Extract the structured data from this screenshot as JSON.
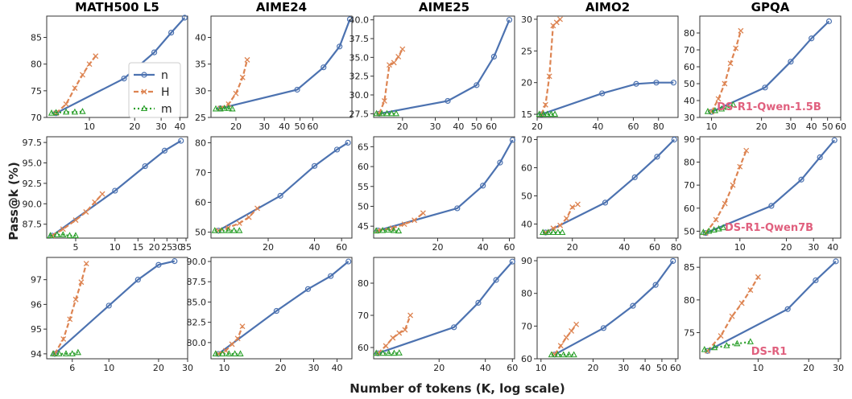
{
  "figure": {
    "ylabel": "Pass@k (%)",
    "xlabel": "Number of tokens (K, log scale)",
    "columns": [
      "MATH500 L5",
      "AIME24",
      "AIME25",
      "AIMO2",
      "GPQA"
    ],
    "row_labels": [
      "DS-R1-Qwen-1.5B",
      "DS-R1-Qwen7B",
      "DS-R1"
    ],
    "legend": [
      "n",
      "H",
      "m"
    ],
    "colors": {
      "n": "#4c72b0",
      "H": "#dd8452",
      "m": "#2ca02c",
      "row_label": "#e0607e"
    }
  },
  "chart_data": [
    {
      "type": "line",
      "row": 0,
      "col": 0,
      "xlog": true,
      "xlim": [
        5.2,
        45
      ],
      "ylim": [
        70,
        89
      ],
      "xticks": [
        10,
        20,
        30,
        40
      ],
      "yticks": [
        70,
        75,
        80,
        85
      ],
      "series": [
        {
          "name": "n",
          "x": [
            6,
            17,
            27,
            35,
            43
          ],
          "y": [
            70.8,
            77.3,
            82.2,
            85.9,
            88.7
          ]
        },
        {
          "name": "H",
          "x": [
            6,
            7,
            8,
            9,
            10,
            11
          ],
          "y": [
            70.8,
            72.5,
            75.5,
            78,
            80,
            81.5
          ]
        },
        {
          "name": "m",
          "x": [
            5.6,
            6,
            7,
            8,
            9
          ],
          "y": [
            70.8,
            70.9,
            71,
            71,
            71.1
          ]
        }
      ]
    },
    {
      "type": "line",
      "row": 0,
      "col": 1,
      "xlog": true,
      "xlim": [
        14,
        105
      ],
      "ylim": [
        25,
        44
      ],
      "xticks": [
        20,
        30,
        40,
        50,
        60
      ],
      "yticks": [
        25,
        30,
        35,
        40
      ],
      "series": [
        {
          "name": "n",
          "x": [
            16,
            48,
            70,
            88,
            102
          ],
          "y": [
            26.7,
            30.2,
            34.4,
            38.3,
            43.4
          ]
        },
        {
          "name": "H",
          "x": [
            16,
            18,
            20,
            22,
            23.5
          ],
          "y": [
            26.7,
            27.5,
            29.5,
            32.5,
            35.8
          ]
        },
        {
          "name": "m",
          "x": [
            15,
            16,
            17,
            18,
            19
          ],
          "y": [
            26.6,
            26.6,
            26.7,
            26.7,
            26.6
          ]
        }
      ]
    },
    {
      "type": "line",
      "row": 0,
      "col": 2,
      "xlog": true,
      "xlim": [
        14,
        80
      ],
      "ylim": [
        27,
        40.5
      ],
      "xticks": [
        20,
        30,
        40,
        50,
        60
      ],
      "yticks": [
        27.5,
        30.0,
        32.5,
        35.0,
        37.5,
        40.0
      ],
      "series": [
        {
          "name": "n",
          "x": [
            15,
            35,
            50,
            62,
            75
          ],
          "y": [
            27.5,
            29.2,
            31.3,
            35.1,
            40.0
          ]
        },
        {
          "name": "H",
          "x": [
            15,
            16,
            17,
            18,
            19,
            20
          ],
          "y": [
            27.5,
            29.2,
            34,
            34.3,
            35.1,
            36.1
          ]
        },
        {
          "name": "m",
          "x": [
            14.5,
            15.5,
            16.5,
            17.5,
            18.5
          ],
          "y": [
            27.5,
            27.5,
            27.5,
            27.5,
            27.5
          ]
        }
      ]
    },
    {
      "type": "line",
      "row": 0,
      "col": 3,
      "xlog": true,
      "xlim": [
        20,
        100
      ],
      "ylim": [
        14.5,
        30.5
      ],
      "xticks": [
        20,
        40,
        60,
        80
      ],
      "yticks": [
        15,
        20,
        25,
        30
      ],
      "series": [
        {
          "name": "n",
          "x": [
            21,
            42,
            62,
            78,
            95
          ],
          "y": [
            15,
            18.3,
            19.8,
            20,
            20
          ]
        },
        {
          "name": "H",
          "x": [
            21,
            22,
            23,
            24,
            25,
            26
          ],
          "y": [
            15,
            16.5,
            21,
            29,
            29.5,
            30
          ]
        },
        {
          "name": "m",
          "x": [
            20.5,
            21.5,
            22.5,
            23.5,
            24.5
          ],
          "y": [
            15,
            15,
            15,
            15,
            15
          ]
        }
      ]
    },
    {
      "type": "line",
      "row": 0,
      "col": 4,
      "xlog": true,
      "xlim": [
        8.5,
        60
      ],
      "ylim": [
        30,
        90
      ],
      "xticks": [
        10,
        20,
        30,
        40,
        50,
        60
      ],
      "yticks": [
        30,
        40,
        50,
        60,
        70,
        80
      ],
      "series": [
        {
          "name": "n",
          "x": [
            10,
            21,
            30,
            40,
            51
          ],
          "y": [
            33.3,
            47.7,
            63,
            76.8,
            86.9
          ]
        },
        {
          "name": "H",
          "x": [
            10,
            11,
            12,
            13,
            14,
            15
          ],
          "y": [
            33.3,
            41,
            50,
            62,
            71,
            81.3
          ]
        },
        {
          "name": "m",
          "x": [
            9.5,
            10.5,
            11.5,
            12.5,
            13.5
          ],
          "y": [
            33.5,
            34,
            35,
            36,
            37.5
          ]
        }
      ]
    },
    {
      "type": "line",
      "row": 1,
      "col": 0,
      "xlog": true,
      "xlim": [
        3,
        36
      ],
      "ylim": [
        85.8,
        98.2
      ],
      "xticks": [
        5,
        10,
        15,
        20,
        25,
        30,
        35
      ],
      "yticks": [
        87.5,
        90.0,
        92.5,
        95.0,
        97.5
      ],
      "series": [
        {
          "name": "n",
          "x": [
            3.3,
            10,
            17,
            24,
            32
          ],
          "y": [
            86.1,
            91.6,
            94.6,
            96.5,
            97.7
          ]
        },
        {
          "name": "H",
          "x": [
            3.3,
            4,
            5,
            6,
            7,
            8
          ],
          "y": [
            86.1,
            86.9,
            88,
            89,
            90.2,
            91.2
          ]
        },
        {
          "name": "m",
          "x": [
            3.2,
            3.6,
            4,
            4.5,
            5
          ],
          "y": [
            86.1,
            86.2,
            86.2,
            86.1,
            86.1
          ]
        }
      ]
    },
    {
      "type": "line",
      "row": 1,
      "col": 1,
      "xlog": true,
      "xlim": [
        8.5,
        70
      ],
      "ylim": [
        48,
        82
      ],
      "xticks": [
        20,
        40,
        60
      ],
      "yticks": [
        50,
        60,
        70,
        80
      ],
      "series": [
        {
          "name": "n",
          "x": [
            9.5,
            24,
            40,
            56,
            66
          ],
          "y": [
            50.5,
            62.2,
            72.2,
            77.7,
            80
          ]
        },
        {
          "name": "H",
          "x": [
            9.5,
            11,
            13,
            15,
            17
          ],
          "y": [
            50.5,
            51.5,
            53,
            55,
            58
          ]
        },
        {
          "name": "m",
          "x": [
            9,
            10,
            11,
            12,
            13
          ],
          "y": [
            50.5,
            50.5,
            50.5,
            50.5,
            50.5
          ]
        }
      ]
    },
    {
      "type": "line",
      "row": 1,
      "col": 2,
      "xlog": true,
      "xlim": [
        7.5,
        65
      ],
      "ylim": [
        42,
        67.5
      ],
      "xticks": [
        20,
        40,
        60
      ],
      "yticks": [
        45,
        50,
        55,
        60,
        65
      ],
      "series": [
        {
          "name": "n",
          "x": [
            8,
            27,
            40,
            52,
            63
          ],
          "y": [
            43.9,
            49.5,
            55.2,
            61,
            66.7
          ]
        },
        {
          "name": "H",
          "x": [
            8,
            10,
            12,
            14,
            16
          ],
          "y": [
            43.9,
            44.5,
            45.5,
            46.5,
            48.3
          ]
        },
        {
          "name": "m",
          "x": [
            7.8,
            8.6,
            9.4,
            10.2,
            11
          ],
          "y": [
            43.8,
            43.9,
            44,
            43.9,
            43.8
          ]
        }
      ]
    },
    {
      "type": "line",
      "row": 1,
      "col": 3,
      "xlog": true,
      "xlim": [
        12.5,
        82
      ],
      "ylim": [
        35,
        71
      ],
      "xticks": [
        20,
        40,
        60,
        80
      ],
      "yticks": [
        40,
        50,
        60,
        70
      ],
      "series": [
        {
          "name": "n",
          "x": [
            14,
            31,
            46,
            62,
            78
          ],
          "y": [
            37,
            47.6,
            56.6,
            63.9,
            70
          ]
        },
        {
          "name": "H",
          "x": [
            14,
            15.5,
            17,
            18.5,
            20,
            21.5
          ],
          "y": [
            37,
            38.5,
            39.5,
            42,
            46,
            47
          ]
        },
        {
          "name": "m",
          "x": [
            13.5,
            14.5,
            15.5,
            16.5,
            17.5
          ],
          "y": [
            37,
            37,
            37,
            37,
            37
          ]
        }
      ]
    },
    {
      "type": "line",
      "row": 1,
      "col": 4,
      "xlog": true,
      "xlim": [
        5.5,
        45
      ],
      "ylim": [
        47,
        91
      ],
      "xticks": [
        10,
        20,
        30,
        40
      ],
      "yticks": [
        50,
        60,
        70,
        80,
        90
      ],
      "series": [
        {
          "name": "n",
          "x": [
            6,
            16,
            25,
            33,
            41
          ],
          "y": [
            49.2,
            61,
            72.4,
            82.1,
            89.5
          ]
        },
        {
          "name": "H",
          "x": [
            6,
            7,
            8,
            9,
            10,
            11
          ],
          "y": [
            49.2,
            55,
            62,
            70,
            78,
            85
          ]
        },
        {
          "name": "m",
          "x": [
            5.8,
            6.3,
            6.8,
            7.3,
            7.8
          ],
          "y": [
            49.5,
            50,
            50.5,
            51,
            51.5
          ]
        }
      ]
    },
    {
      "type": "line",
      "row": 2,
      "col": 0,
      "xlog": true,
      "xlim": [
        4.2,
        30
      ],
      "ylim": [
        93.8,
        97.9
      ],
      "xticks": [
        6,
        10,
        20,
        30
      ],
      "yticks": [
        94,
        95,
        96,
        97
      ],
      "series": [
        {
          "name": "n",
          "x": [
            4.7,
            10,
            15,
            20,
            25
          ],
          "y": [
            94,
            95.95,
            97,
            97.6,
            97.75
          ]
        },
        {
          "name": "H",
          "x": [
            4.7,
            5.3,
            5.8,
            6.3,
            6.8,
            7.3
          ],
          "y": [
            94,
            94.6,
            95.4,
            96.2,
            96.9,
            97.65
          ]
        },
        {
          "name": "m",
          "x": [
            4.6,
            5,
            5.5,
            6,
            6.5
          ],
          "y": [
            94,
            94,
            94,
            94,
            94.05
          ]
        }
      ]
    },
    {
      "type": "line",
      "row": 2,
      "col": 1,
      "xlog": true,
      "xlim": [
        8.5,
        48
      ],
      "ylim": [
        78,
        90.5
      ],
      "xticks": [
        10,
        20,
        30,
        40
      ],
      "yticks": [
        80.0,
        82.5,
        85.0,
        87.5,
        90.0
      ],
      "series": [
        {
          "name": "n",
          "x": [
            9.3,
            19,
            28,
            37,
            46
          ],
          "y": [
            78.6,
            83.9,
            86.6,
            88.2,
            90
          ]
        },
        {
          "name": "H",
          "x": [
            9.3,
            10.2,
            11,
            11.8,
            12.5
          ],
          "y": [
            78.6,
            79,
            79.8,
            80.5,
            82
          ]
        },
        {
          "name": "m",
          "x": [
            9,
            9.8,
            10.6,
            11.4,
            12.2
          ],
          "y": [
            78.6,
            78.6,
            78.6,
            78.6,
            78.6
          ]
        }
      ]
    },
    {
      "type": "line",
      "row": 2,
      "col": 2,
      "xlog": true,
      "xlim": [
        7.5,
        62
      ],
      "ylim": [
        56.5,
        88
      ],
      "xticks": [
        20,
        40,
        60
      ],
      "yticks": [
        60,
        70,
        80
      ],
      "series": [
        {
          "name": "n",
          "x": [
            8,
            25,
            36,
            47,
            60
          ],
          "y": [
            58.2,
            66.3,
            73.9,
            81,
            86.7
          ]
        },
        {
          "name": "H",
          "x": [
            8,
            9,
            10,
            11,
            12,
            13
          ],
          "y": [
            58.2,
            60.5,
            63,
            64.5,
            65.5,
            70
          ]
        },
        {
          "name": "m",
          "x": [
            7.8,
            8.6,
            9.4,
            10.2,
            11
          ],
          "y": [
            58.2,
            58.2,
            58.2,
            58.2,
            58.3
          ]
        }
      ]
    },
    {
      "type": "line",
      "row": 2,
      "col": 3,
      "xlog": true,
      "xlim": [
        9.5,
        62
      ],
      "ylim": [
        60,
        91
      ],
      "xticks": [
        10,
        20,
        30,
        40,
        50,
        60
      ],
      "yticks": [
        60,
        70,
        80,
        90
      ],
      "series": [
        {
          "name": "n",
          "x": [
            12,
            23,
            34,
            46,
            58
          ],
          "y": [
            61.3,
            69.4,
            76.2,
            82.6,
            89.9
          ]
        },
        {
          "name": "H",
          "x": [
            12,
            13,
            14,
            15,
            16
          ],
          "y": [
            61.3,
            64,
            66.5,
            68.5,
            70.5
          ]
        },
        {
          "name": "m",
          "x": [
            11.5,
            12.5,
            13.5,
            14.5,
            15.5
          ],
          "y": [
            61.2,
            61.2,
            61.2,
            61.2,
            61.2
          ]
        }
      ]
    },
    {
      "type": "line",
      "row": 2,
      "col": 4,
      "xlog": true,
      "xlim": [
        4.5,
        31
      ],
      "ylim": [
        71,
        86.5
      ],
      "xticks": [
        10,
        20,
        30
      ],
      "yticks": [
        75,
        80,
        85
      ],
      "series": [
        {
          "name": "n",
          "x": [
            5,
            15,
            22,
            29
          ],
          "y": [
            72.2,
            78.6,
            83,
            85.9
          ]
        },
        {
          "name": "H",
          "x": [
            5,
            6,
            7,
            8,
            9,
            10
          ],
          "y": [
            72.2,
            74.5,
            77.5,
            79.5,
            81.5,
            83.5
          ]
        },
        {
          "name": "m",
          "x": [
            4.8,
            5.5,
            6.5,
            7.5,
            9
          ],
          "y": [
            72.4,
            72.7,
            73,
            73.3,
            73.6
          ]
        }
      ]
    }
  ]
}
